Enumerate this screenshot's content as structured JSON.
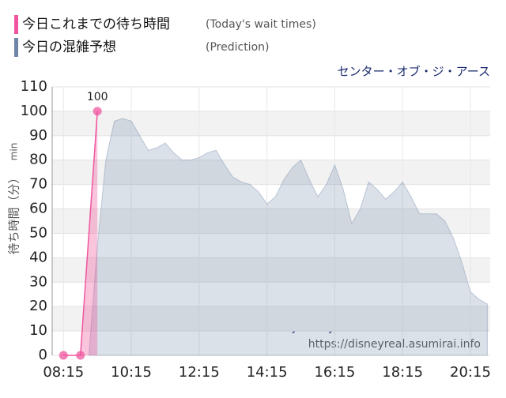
{
  "chart_data": {
    "type": "area",
    "subtitle": "センター・オブ・ジ・アース",
    "ylabel": "待ち時間（分）",
    "yunit": "min",
    "annotations": [
      "Journey to the Center of the Earth",
      "https://disneyreal.asumirai.info"
    ],
    "xlim": [
      "07:55",
      "20:50"
    ],
    "xticks": [
      "08:15",
      "10:15",
      "12:15",
      "14:15",
      "16:15",
      "18:15",
      "20:15"
    ],
    "ylim": [
      0,
      110
    ],
    "yticks": [
      0,
      10,
      20,
      30,
      40,
      50,
      60,
      70,
      80,
      90,
      100,
      110
    ],
    "grid": true,
    "series": [
      {
        "name": "今日これまでの待ち時間",
        "label_en": "(Today's wait times)",
        "color": "#f0569f",
        "type": "line",
        "x": [
          "08:15",
          "08:45",
          "09:15"
        ],
        "values": [
          0,
          0,
          100
        ]
      },
      {
        "name": "今日の混雑予想",
        "label_en": "(Prediction)",
        "color": "#6f86a8",
        "type": "area",
        "x": [
          "09:00",
          "09:15",
          "09:30",
          "09:45",
          "10:00",
          "10:15",
          "10:30",
          "10:45",
          "11:00",
          "11:15",
          "11:30",
          "11:45",
          "12:00",
          "12:15",
          "12:30",
          "12:45",
          "13:00",
          "13:15",
          "13:30",
          "13:45",
          "14:00",
          "14:15",
          "14:30",
          "14:45",
          "15:00",
          "15:15",
          "15:30",
          "15:45",
          "16:00",
          "16:15",
          "16:30",
          "16:45",
          "17:00",
          "17:15",
          "17:30",
          "17:45",
          "18:00",
          "18:15",
          "18:30",
          "18:45",
          "19:00",
          "19:15",
          "19:30",
          "19:45",
          "20:00",
          "20:15",
          "20:30",
          "20:45"
        ],
        "values": [
          0,
          45,
          80,
          96,
          97,
          96,
          90,
          84,
          85,
          87,
          83,
          80,
          80,
          81,
          83,
          84,
          78,
          73,
          71,
          70,
          67,
          62,
          65,
          72,
          77,
          80,
          72,
          65,
          70,
          78,
          68,
          54,
          60,
          71,
          68,
          64,
          67,
          71,
          65,
          58,
          58,
          58,
          55,
          48,
          38,
          26,
          23,
          21
        ]
      }
    ]
  }
}
